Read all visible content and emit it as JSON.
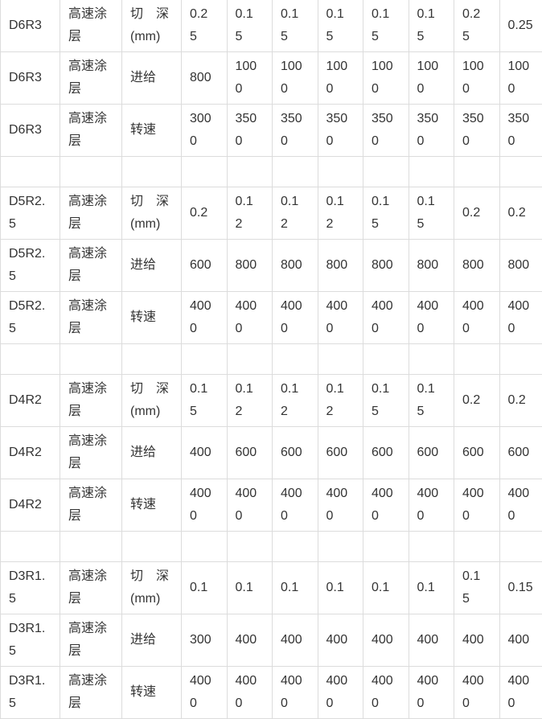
{
  "table": {
    "rows": [
      {
        "tool": "D6R3",
        "coating": "高速涂层",
        "param": "切　深(mm)",
        "values": [
          "0.25",
          "0.15",
          "0.15",
          "0.15",
          "0.15",
          "0.15",
          "0.25",
          "0.25"
        ]
      },
      {
        "tool": "D6R3",
        "coating": "高速涂层",
        "param": "进给",
        "values": [
          "800",
          "1000",
          "1000",
          "1000",
          "1000",
          "1000",
          "1000",
          "1000"
        ]
      },
      {
        "tool": "D6R3",
        "coating": "高速涂层",
        "param": "转速",
        "values": [
          "3000",
          "3500",
          "3500",
          "3500",
          "3500",
          "3500",
          "3500",
          "3500"
        ]
      },
      {
        "spacer": true
      },
      {
        "tool": "D5R2.5",
        "coating": "高速涂层",
        "param": "切　深(mm)",
        "values": [
          "0.2",
          "0.12",
          "0.12",
          "0.12",
          "0.15",
          "0.15",
          "0.2",
          "0.2"
        ]
      },
      {
        "tool": "D5R2.5",
        "coating": "高速涂层",
        "param": "进给",
        "values": [
          "600",
          "800",
          "800",
          "800",
          "800",
          "800",
          "800",
          "800"
        ]
      },
      {
        "tool": "D5R2.5",
        "coating": "高速涂层",
        "param": "转速",
        "values": [
          "4000",
          "4000",
          "4000",
          "4000",
          "4000",
          "4000",
          "4000",
          "4000"
        ]
      },
      {
        "spacer": true
      },
      {
        "tool": "D4R2",
        "coating": "高速涂层",
        "param": "切　深(mm)",
        "values": [
          "0.15",
          "0.12",
          "0.12",
          "0.12",
          "0.15",
          "0.15",
          "0.2",
          "0.2"
        ]
      },
      {
        "tool": "D4R2",
        "coating": "高速涂层",
        "param": "进给",
        "values": [
          "400",
          "600",
          "600",
          "600",
          "600",
          "600",
          "600",
          "600"
        ]
      },
      {
        "tool": "D4R2",
        "coating": "高速涂层",
        "param": "转速",
        "values": [
          "4000",
          "4000",
          "4000",
          "4000",
          "4000",
          "4000",
          "4000",
          "4000"
        ]
      },
      {
        "spacer": true
      },
      {
        "tool": "D3R1.5",
        "coating": "高速涂层",
        "param": "切　深(mm)",
        "values": [
          "0.1",
          "0.1",
          "0.1",
          "0.1",
          "0.1",
          "0.1",
          "0.15",
          "0.15"
        ]
      },
      {
        "tool": "D3R1.5",
        "coating": "高速涂层",
        "param": "进给",
        "values": [
          "300",
          "400",
          "400",
          "400",
          "400",
          "400",
          "400",
          "400"
        ]
      },
      {
        "tool": "D3R1.5",
        "coating": "高速涂层",
        "param": "转速",
        "values": [
          "4000",
          "4000",
          "4000",
          "4000",
          "4000",
          "4000",
          "4000",
          "4000"
        ]
      }
    ]
  }
}
